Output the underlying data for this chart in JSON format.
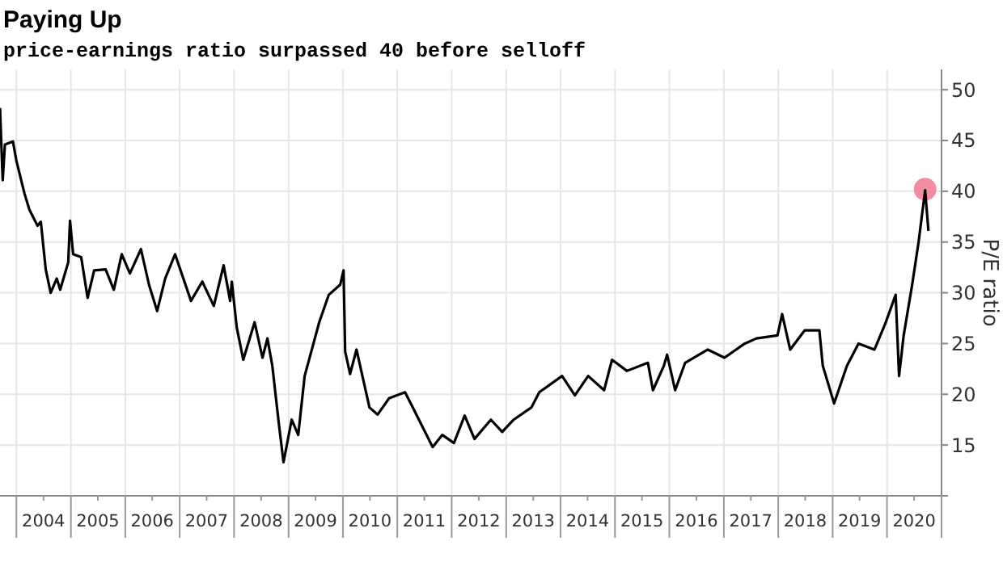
{
  "chart_data": {
    "type": "line",
    "title": "Paying Up",
    "subtitle": "price-earnings ratio surpassed 40 before selloff",
    "ylabel": "P/E ratio",
    "xlim": [
      "2003-09-13",
      "2021-01-01"
    ],
    "ylim": [
      10,
      52
    ],
    "yticks": [
      {
        "value": 10,
        "label": null
      },
      15,
      20,
      25,
      30,
      35,
      40,
      45,
      50
    ],
    "xticks": [
      {
        "value": "2004-01-01",
        "label": null
      },
      {
        "value": "2004-07-01",
        "label": "2004"
      },
      {
        "value": "2005-01-01",
        "label": null
      },
      {
        "value": "2005-07-01",
        "label": "2005"
      },
      {
        "value": "2006-01-01",
        "label": null
      },
      {
        "value": "2006-07-01",
        "label": "2006"
      },
      {
        "value": "2007-01-01",
        "label": null
      },
      {
        "value": "2007-07-01",
        "label": "2007"
      },
      {
        "value": "2008-01-01",
        "label": null
      },
      {
        "value": "2008-07-01",
        "label": "2008"
      },
      {
        "value": "2009-01-01",
        "label": null
      },
      {
        "value": "2009-07-01",
        "label": "2009"
      },
      {
        "value": "2010-01-01",
        "label": null
      },
      {
        "value": "2010-07-01",
        "label": "2010"
      },
      {
        "value": "2011-01-01",
        "label": null
      },
      {
        "value": "2011-07-01",
        "label": "2011"
      },
      {
        "value": "2012-01-01",
        "label": null
      },
      {
        "value": "2012-07-01",
        "label": "2012"
      },
      {
        "value": "2013-01-01",
        "label": null
      },
      {
        "value": "2013-07-01",
        "label": "2013"
      },
      {
        "value": "2014-01-01",
        "label": null
      },
      {
        "value": "2014-07-01",
        "label": "2014"
      },
      {
        "value": "2015-01-01",
        "label": null
      },
      {
        "value": "2015-07-01",
        "label": "2015"
      },
      {
        "value": "2016-01-01",
        "label": null
      },
      {
        "value": "2016-07-01",
        "label": "2016"
      },
      {
        "value": "2017-01-01",
        "label": null
      },
      {
        "value": "2017-07-01",
        "label": "2017"
      },
      {
        "value": "2018-01-01",
        "label": null
      },
      {
        "value": "2018-07-01",
        "label": "2018"
      },
      {
        "value": "2019-01-01",
        "label": null
      },
      {
        "value": "2019-07-01",
        "label": "2019"
      },
      {
        "value": "2020-01-01",
        "label": null
      },
      {
        "value": "2020-07-01",
        "label": "2020"
      },
      {
        "value": "2021-01-01",
        "label": null
      }
    ],
    "grid": true,
    "series": [
      {
        "color": "#000000",
        "x": [
          "2003-09-13",
          "2003-10-01",
          "2003-10-16",
          "2003-12-09",
          "2004-01-01",
          "2004-02-24",
          "2004-03-28",
          "2004-05-22",
          "2004-06-13",
          "2004-07-16",
          "2004-08-18",
          "2004-09-28",
          "2004-10-21",
          "2004-12-14",
          "2004-12-26",
          "2005-01-16",
          "2005-03-11",
          "2005-04-23",
          "2005-06-06",
          "2005-08-22",
          "2005-10-16",
          "2005-12-08",
          "2006-02-01",
          "2006-04-16",
          "2006-06-09",
          "2006-08-03",
          "2006-09-26",
          "2006-12-01",
          "2007-03-18",
          "2007-06-02",
          "2007-08-18",
          "2007-10-23",
          "2007-12-06",
          "2007-12-17",
          "2008-01-19",
          "2008-03-03",
          "2008-05-18",
          "2008-07-10",
          "2008-08-12",
          "2008-09-14",
          "2008-10-27",
          "2008-11-28",
          "2009-01-22",
          "2009-03-07",
          "2009-04-19",
          "2009-07-26",
          "2009-09-28",
          "2009-12-14",
          "2010-01-05",
          "2010-01-16",
          "2010-02-18",
          "2010-04-02",
          "2010-06-28",
          "2010-08-22",
          "2010-11-06",
          "2011-02-22",
          "2011-05-09",
          "2011-08-26",
          "2011-10-30",
          "2012-01-16",
          "2012-03-28",
          "2012-06-02",
          "2012-09-20",
          "2012-12-05",
          "2013-02-20",
          "2013-06-19",
          "2013-08-11",
          "2014-01-11",
          "2014-04-07",
          "2014-07-05",
          "2014-10-20",
          "2014-12-12",
          "2015-03-22",
          "2015-08-10",
          "2015-09-13",
          "2015-11-25",
          "2015-12-17",
          "2016-02-09",
          "2016-04-16",
          "2016-09-15",
          "2017-01-05",
          "2017-05-22",
          "2017-08-07",
          "2017-12-27",
          "2018-01-27",
          "2018-03-22",
          "2018-06-28",
          "2018-10-04",
          "2018-10-27",
          "2019-01-11",
          "2019-04-07",
          "2019-06-24",
          "2019-10-09",
          "2019-12-24",
          "2020-02-28",
          "2020-03-22",
          "2020-04-22",
          "2020-06-18",
          "2020-07-31",
          "2020-09-13",
          "2020-10-05"
        ],
        "values": [
          48.2,
          41.1,
          44.6,
          44.9,
          43,
          39.8,
          38.2,
          36.6,
          37,
          32.3,
          30,
          31.4,
          30.3,
          33,
          37.1,
          33.8,
          33.5,
          29.5,
          32.2,
          32.3,
          30.3,
          33.8,
          31.9,
          34.3,
          30.8,
          28.2,
          31.4,
          33.8,
          29.2,
          31.1,
          28.7,
          32.7,
          29.2,
          31.1,
          26.6,
          23.4,
          27.1,
          23.6,
          25.5,
          22.8,
          17.2,
          13.3,
          17.5,
          16,
          21.8,
          27.1,
          29.8,
          30.8,
          32.2,
          24.2,
          22,
          24.4,
          18.7,
          18,
          19.6,
          20.2,
          18,
          14.8,
          16,
          15.2,
          17.9,
          15.6,
          17.5,
          16.3,
          17.5,
          18.7,
          20.2,
          21.8,
          19.9,
          21.8,
          20.4,
          23.4,
          22.3,
          23.1,
          20.4,
          22.8,
          23.9,
          20.4,
          23.1,
          24.4,
          23.6,
          25,
          25.5,
          25.8,
          27.9,
          24.4,
          26.3,
          26.3,
          22.8,
          19.1,
          22.8,
          25,
          24.4,
          27.1,
          29.8,
          21.8,
          25.8,
          30.8,
          35,
          40.1,
          36.1
        ]
      },
      {
        "type": "scatter",
        "color": "#f28ca0",
        "marker": "circle",
        "x": [
          "2020-09-13"
        ],
        "values": [
          40.2
        ]
      }
    ]
  }
}
